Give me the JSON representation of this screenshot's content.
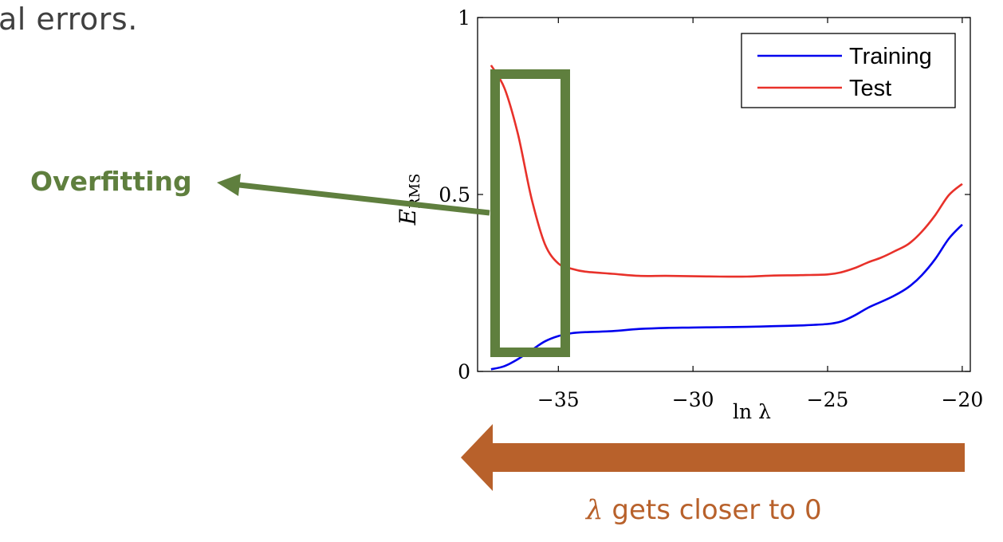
{
  "slide": {
    "text_fragment": "al errors.",
    "annotation_label": "Overfitting",
    "caption_symbol": "λ",
    "caption_text": " gets closer to 0"
  },
  "colors": {
    "training": "#0000ee",
    "test": "#e8312a",
    "annotation": "#5f7f3e",
    "caption": "#b8612b"
  },
  "chart_data": {
    "type": "line",
    "xlabel": "ln λ",
    "ylabel": "E_RMS",
    "ylabel_main": "E",
    "ylabel_sub": "RMS",
    "xlim": [
      -38,
      -19.7
    ],
    "ylim": [
      0,
      1
    ],
    "xticks": [
      -35,
      -30,
      -25,
      -20
    ],
    "xtick_labels": [
      "−35",
      "−30",
      "−25",
      "−20"
    ],
    "yticks": [
      0,
      0.5,
      1
    ],
    "ytick_labels": [
      "0",
      "0.5",
      "1"
    ],
    "legend_position": "top-right",
    "series": [
      {
        "name": "Training",
        "color": "#0000ee",
        "x": [
          -37.5,
          -37,
          -36.5,
          -36,
          -35.5,
          -35,
          -34.5,
          -34,
          -33,
          -32,
          -31,
          -30,
          -29,
          -28,
          -27,
          -26,
          -25,
          -24.5,
          -24,
          -23.5,
          -23,
          -22.5,
          -22,
          -21.5,
          -21,
          -20.5,
          -20
        ],
        "y": [
          0.006,
          0.015,
          0.035,
          0.06,
          0.085,
          0.1,
          0.108,
          0.111,
          0.114,
          0.12,
          0.123,
          0.124,
          0.125,
          0.126,
          0.128,
          0.13,
          0.134,
          0.141,
          0.158,
          0.18,
          0.197,
          0.215,
          0.238,
          0.272,
          0.318,
          0.375,
          0.415
        ]
      },
      {
        "name": "Test",
        "color": "#e8312a",
        "x": [
          -37.5,
          -37,
          -36.5,
          -36,
          -35.5,
          -35,
          -34.5,
          -34,
          -33,
          -32,
          -31,
          -30,
          -29,
          -28,
          -27,
          -26,
          -25,
          -24.5,
          -24,
          -23.5,
          -23,
          -22.5,
          -22,
          -21.5,
          -21,
          -20.5,
          -20
        ],
        "y": [
          0.865,
          0.8,
          0.67,
          0.49,
          0.36,
          0.305,
          0.29,
          0.282,
          0.276,
          0.27,
          0.27,
          0.269,
          0.268,
          0.268,
          0.271,
          0.272,
          0.274,
          0.28,
          0.292,
          0.308,
          0.322,
          0.34,
          0.36,
          0.395,
          0.442,
          0.498,
          0.53
        ]
      }
    ]
  }
}
